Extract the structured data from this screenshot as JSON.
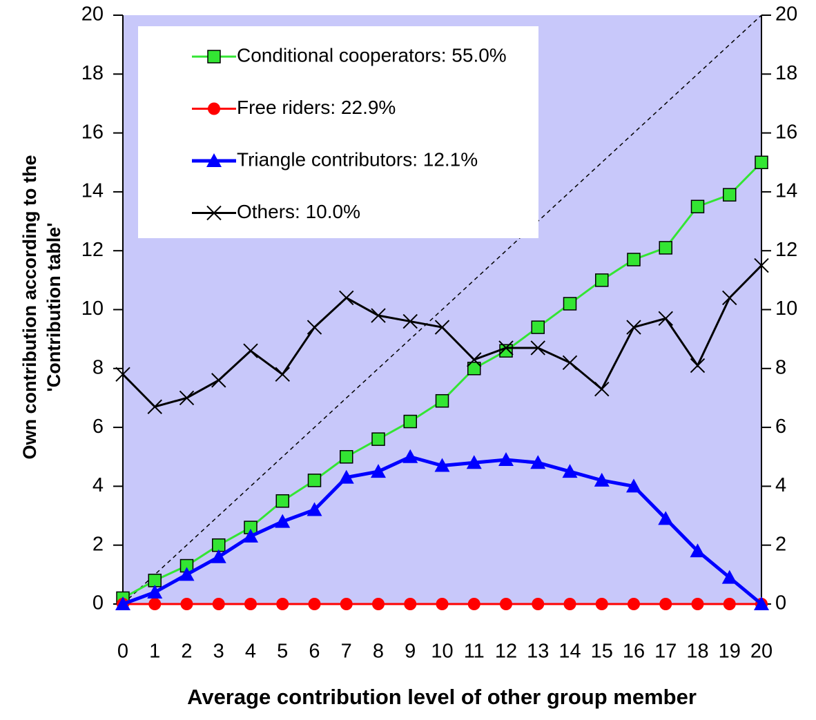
{
  "chart_data": {
    "type": "line",
    "x_label": "Average contribution level of other group member",
    "y_label": [
      "Own contribution according to the",
      "'Contribution table'"
    ],
    "x": [
      0,
      1,
      2,
      3,
      4,
      5,
      6,
      7,
      8,
      9,
      10,
      11,
      12,
      13,
      14,
      15,
      16,
      17,
      18,
      19,
      20
    ],
    "xlim": [
      0,
      20
    ],
    "xticks": [
      0,
      1,
      2,
      3,
      4,
      5,
      6,
      7,
      8,
      9,
      10,
      11,
      12,
      13,
      14,
      15,
      16,
      17,
      18,
      19,
      20
    ],
    "ylim": [
      0,
      20
    ],
    "yticks": [
      0,
      2,
      4,
      6,
      8,
      10,
      12,
      14,
      16,
      18,
      20
    ],
    "diagonal": true,
    "legend": "upper left",
    "series": [
      {
        "name": "Conditional cooperators: 55.0%",
        "color": "#33e533",
        "marker": "square",
        "values": [
          0.2,
          0.8,
          1.3,
          2.0,
          2.6,
          3.5,
          4.2,
          5.0,
          5.6,
          6.2,
          6.9,
          8.0,
          8.6,
          9.4,
          10.2,
          11.0,
          11.7,
          12.1,
          13.5,
          13.9,
          15.0
        ]
      },
      {
        "name": "Free riders: 22.9%",
        "color": "#ff0000",
        "marker": "circle",
        "values": [
          0,
          0,
          0,
          0,
          0,
          0,
          0,
          0,
          0,
          0,
          0,
          0,
          0,
          0,
          0,
          0,
          0,
          0,
          0,
          0,
          0
        ]
      },
      {
        "name": "Triangle contributors: 12.1%",
        "color": "#0000ff",
        "marker": "triangle",
        "values": [
          0,
          0.4,
          1.0,
          1.6,
          2.3,
          2.8,
          3.2,
          4.3,
          4.5,
          5.0,
          4.7,
          4.8,
          4.9,
          4.8,
          4.5,
          4.2,
          4.0,
          2.9,
          1.8,
          0.9,
          0
        ]
      },
      {
        "name": "Others: 10.0%",
        "color": "#000000",
        "marker": "x",
        "values": [
          7.8,
          6.7,
          7.0,
          7.6,
          8.6,
          7.8,
          9.4,
          10.4,
          9.8,
          9.6,
          9.4,
          8.3,
          8.7,
          8.7,
          8.2,
          7.3,
          9.4,
          9.7,
          8.1,
          10.4,
          11.5
        ]
      }
    ]
  }
}
